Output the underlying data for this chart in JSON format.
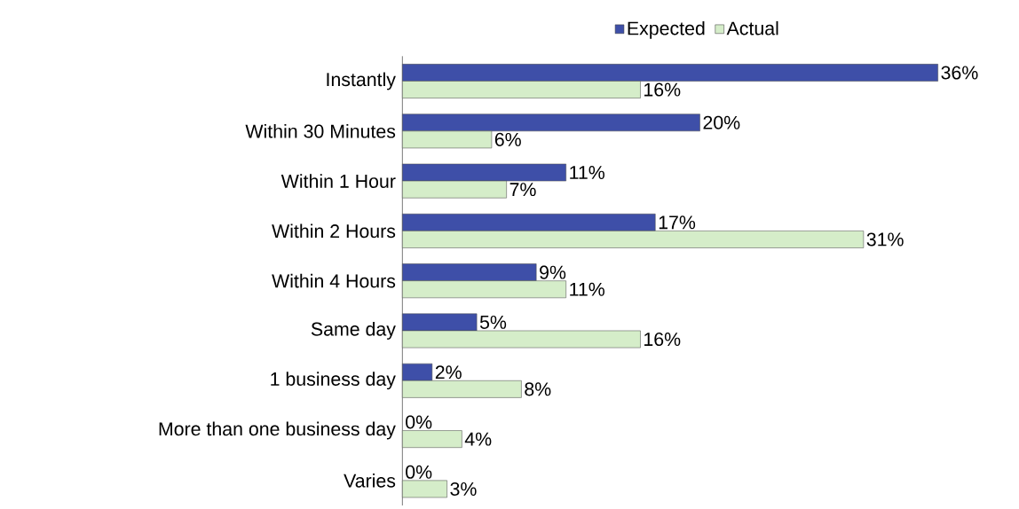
{
  "chart_data": {
    "type": "bar",
    "orientation": "horizontal",
    "categories": [
      "Instantly",
      "Within 30 Minutes",
      "Within 1 Hour",
      "Within 2 Hours",
      "Within 4 Hours",
      "Same day",
      "1 business day",
      "More than one business day",
      "Varies"
    ],
    "series": [
      {
        "name": "Expected",
        "color": "#3e4fa8",
        "values": [
          36,
          20,
          11,
          17,
          9,
          5,
          2,
          0,
          0
        ],
        "value_labels": [
          "36%",
          "20%",
          "11%",
          "17%",
          "9%",
          "5%",
          "2%",
          "0%",
          "0%"
        ]
      },
      {
        "name": "Actual",
        "color": "#d5edc9",
        "values": [
          16,
          6,
          7,
          31,
          11,
          16,
          8,
          4,
          3
        ],
        "value_labels": [
          "16%",
          "6%",
          "7%",
          "31%",
          "11%",
          "16%",
          "8%",
          "4%",
          "3%"
        ]
      }
    ],
    "legend": "top"
  }
}
